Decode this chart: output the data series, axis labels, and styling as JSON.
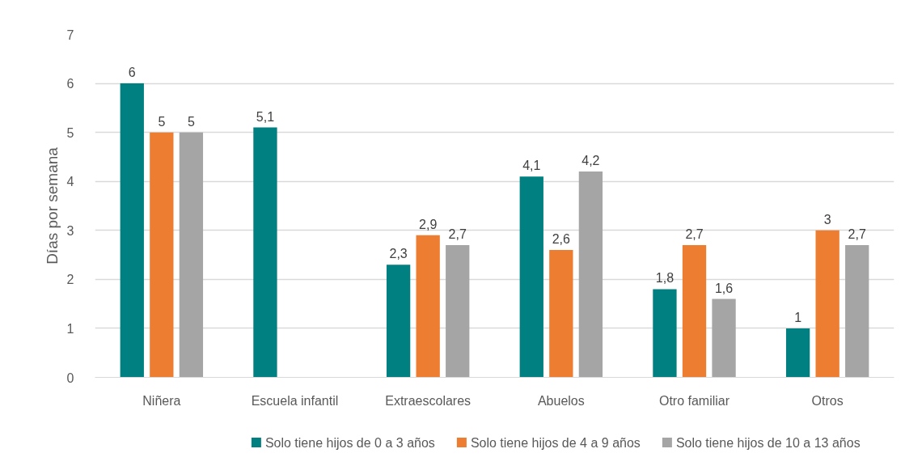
{
  "chart_data": {
    "type": "bar",
    "ylabel": "Días por semana",
    "categories": [
      "Niñera",
      "Escuela infantil",
      "Extraescolares",
      "Abuelos",
      "Otro familiar",
      "Otros"
    ],
    "series": [
      {
        "name": "Solo tiene hijos de 0 a 3 años",
        "color": "#008080",
        "values": [
          6,
          5.1,
          2.3,
          4.1,
          1.8,
          1
        ],
        "value_labels": [
          "6",
          "5,1",
          "2,3",
          "4,1",
          "1,8",
          "1"
        ]
      },
      {
        "name": "Solo tiene hijos de 4 a 9 años",
        "color": "#ed7d31",
        "values": [
          5,
          null,
          2.9,
          2.6,
          2.7,
          3
        ],
        "value_labels": [
          "5",
          null,
          "2,9",
          "2,6",
          "2,7",
          "3"
        ]
      },
      {
        "name": "Solo tiene hijos de 10 a 13 años",
        "color": "#a5a5a5",
        "values": [
          5,
          null,
          2.7,
          4.2,
          1.6,
          2.7
        ],
        "value_labels": [
          "5",
          null,
          "2,7",
          "4,2",
          "1,6",
          "2,7"
        ]
      }
    ],
    "ylim": [
      0,
      7
    ],
    "yticks": [
      0,
      1,
      2,
      3,
      4,
      5,
      6,
      7
    ],
    "grid": "y",
    "legend": "bottom"
  }
}
